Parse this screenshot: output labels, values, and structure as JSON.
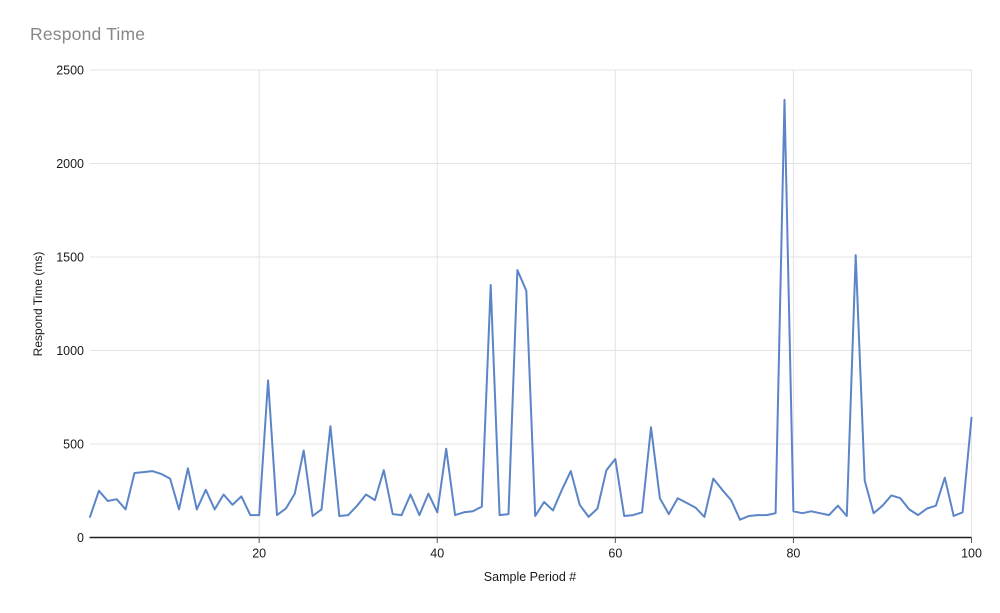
{
  "chart_data": {
    "type": "line",
    "title": "Respond Time",
    "xlabel": "Sample Period #",
    "ylabel": "Respond Time (ms)",
    "xlim": [
      1,
      100
    ],
    "ylim": [
      0,
      2500
    ],
    "x_ticks": [
      20,
      40,
      60,
      80,
      100
    ],
    "y_ticks": [
      0,
      500,
      1000,
      1500,
      2000,
      2500
    ],
    "grid": true,
    "legend": "none",
    "series_name": "Respond Time (ms)",
    "values": [
      110,
      250,
      195,
      205,
      150,
      345,
      350,
      355,
      340,
      315,
      150,
      370,
      150,
      255,
      150,
      230,
      175,
      220,
      120,
      120,
      840,
      120,
      155,
      235,
      465,
      115,
      150,
      595,
      115,
      120,
      170,
      230,
      200,
      360,
      125,
      120,
      230,
      120,
      235,
      135,
      475,
      120,
      135,
      140,
      165,
      1350,
      120,
      125,
      1430,
      1320,
      115,
      190,
      145,
      255,
      355,
      175,
      110,
      155,
      360,
      420,
      115,
      120,
      135,
      590,
      210,
      125,
      210,
      185,
      160,
      110,
      315,
      255,
      200,
      95,
      115,
      120,
      120,
      130,
      2340,
      140,
      130,
      140,
      130,
      120,
      170,
      115,
      1510,
      305,
      130,
      170,
      225,
      210,
      150,
      120,
      155,
      170,
      320,
      115,
      135,
      640
    ]
  },
  "colors": {
    "line": "#5b85c8",
    "gridline": "#e3e3e3",
    "axis": "#212121",
    "tick": "#555555",
    "tick_label": "#1a1a1a",
    "title": "#878787",
    "background": "#ffffff"
  }
}
